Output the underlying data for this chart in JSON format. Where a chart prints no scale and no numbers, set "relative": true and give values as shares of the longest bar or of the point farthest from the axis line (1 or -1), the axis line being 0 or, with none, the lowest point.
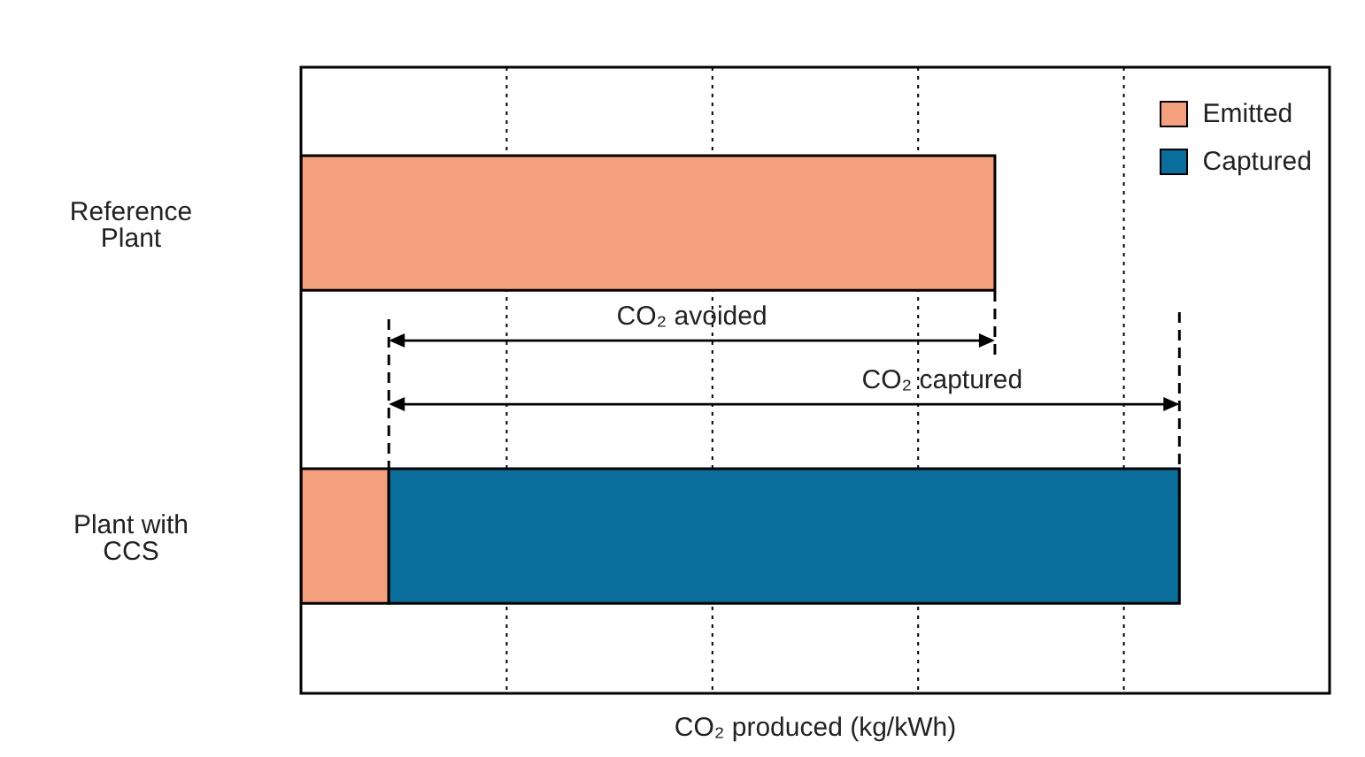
{
  "chart_data": {
    "type": "bar",
    "orientation": "horizontal",
    "stacked": true,
    "relative": true,
    "categories": [
      "Reference Plant",
      "Plant with CCS"
    ],
    "series": [
      {
        "name": "Emitted",
        "color": "#f4a07c",
        "values": [
          0.79,
          0.1
        ]
      },
      {
        "name": "Captured",
        "color": "#0a6e9c",
        "values": [
          null,
          0.9
        ]
      }
    ],
    "xlabel": "CO₂ produced (kg/kWh)",
    "annotations": [
      "CO₂ avoided",
      "CO₂ captured"
    ],
    "grid": "x",
    "legend": "top right"
  }
}
